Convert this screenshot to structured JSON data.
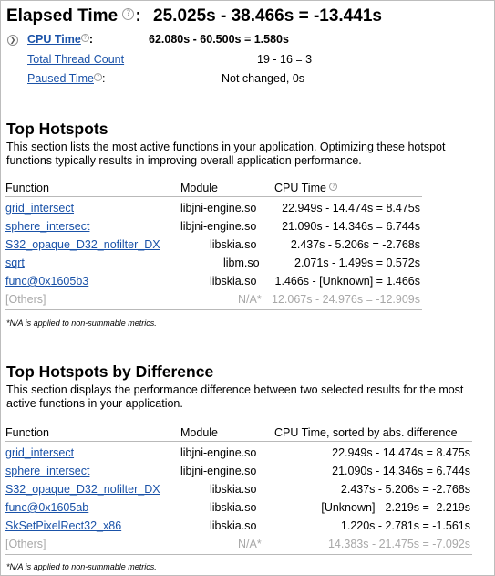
{
  "elapsed": {
    "label": "Elapsed Time",
    "colon": ":",
    "value": "25.025s - 38.466s = -13.441s"
  },
  "metrics": [
    {
      "label": "CPU Time",
      "value": "62.080s - 60.500s = 1.580s",
      "help": true
    },
    {
      "label": "Total Thread Count",
      "value": "19 - 16 = 3",
      "help": false
    },
    {
      "label": "Paused Time",
      "value": "Not changed, 0s",
      "help": true
    }
  ],
  "cpu_colon": ":",
  "paused_colon": ":",
  "top_hotspots": {
    "title": "Top Hotspots",
    "description": "This section lists the most active functions in your application. Optimizing these hotspot functions typically results in improving overall application performance.",
    "headers": {
      "function": "Function",
      "module": "Module",
      "cpu": "CPU Time"
    },
    "rows": [
      {
        "function": "grid_intersect",
        "module": "libjni-engine.so",
        "cpu": "22.949s - 14.474s = 8.475s"
      },
      {
        "function": "sphere_intersect",
        "module": "libjni-engine.so",
        "cpu": "21.090s - 14.346s = 6.744s"
      },
      {
        "function": "S32_opaque_D32_nofilter_DX",
        "module": "libskia.so",
        "cpu": "2.437s - 5.206s = -2.768s"
      },
      {
        "function": "sqrt",
        "module": "libm.so",
        "cpu": "2.071s - 1.499s = 0.572s"
      },
      {
        "function": "func@0x1605b3",
        "module": "libskia.so",
        "cpu": "1.466s - [Unknown] = 1.466s"
      }
    ],
    "others": {
      "function": "[Others]",
      "module": "N/A*",
      "cpu": "12.067s - 24.976s = -12.909s"
    },
    "note": "*N/A is applied to non-summable metrics."
  },
  "top_diff": {
    "title": "Top Hotspots by Difference",
    "description": "This section displays the performance difference between two selected results for the most active functions in your application.",
    "headers": {
      "function": "Function",
      "module": "Module",
      "cpu": "CPU Time, sorted by abs. difference"
    },
    "rows": [
      {
        "function": "grid_intersect",
        "module": "libjni-engine.so",
        "cpu": "22.949s - 14.474s = 8.475s"
      },
      {
        "function": "sphere_intersect",
        "module": "libjni-engine.so",
        "cpu": "21.090s - 14.346s = 6.744s"
      },
      {
        "function": "S32_opaque_D32_nofilter_DX",
        "module": "libskia.so",
        "cpu": "2.437s - 5.206s = -2.768s"
      },
      {
        "function": "func@0x1605ab",
        "module": "libskia.so",
        "cpu": "[Unknown] - 2.219s = -2.219s"
      },
      {
        "function": "SkSetPixelRect32_x86",
        "module": "libskia.so",
        "cpu": "1.220s - 2.781s = -1.561s"
      }
    ],
    "others": {
      "function": "[Others]",
      "module": "N/A*",
      "cpu": "14.383s - 21.475s = -7.092s"
    },
    "note": "*N/A is applied to non-summable metrics."
  },
  "colors": {
    "link": "#1a52a8",
    "muted": "#a8a8a8",
    "divider": "#b9b9b9"
  },
  "icons": {
    "help": "question-circle-icon",
    "expand": "expand-arrow-icon"
  }
}
